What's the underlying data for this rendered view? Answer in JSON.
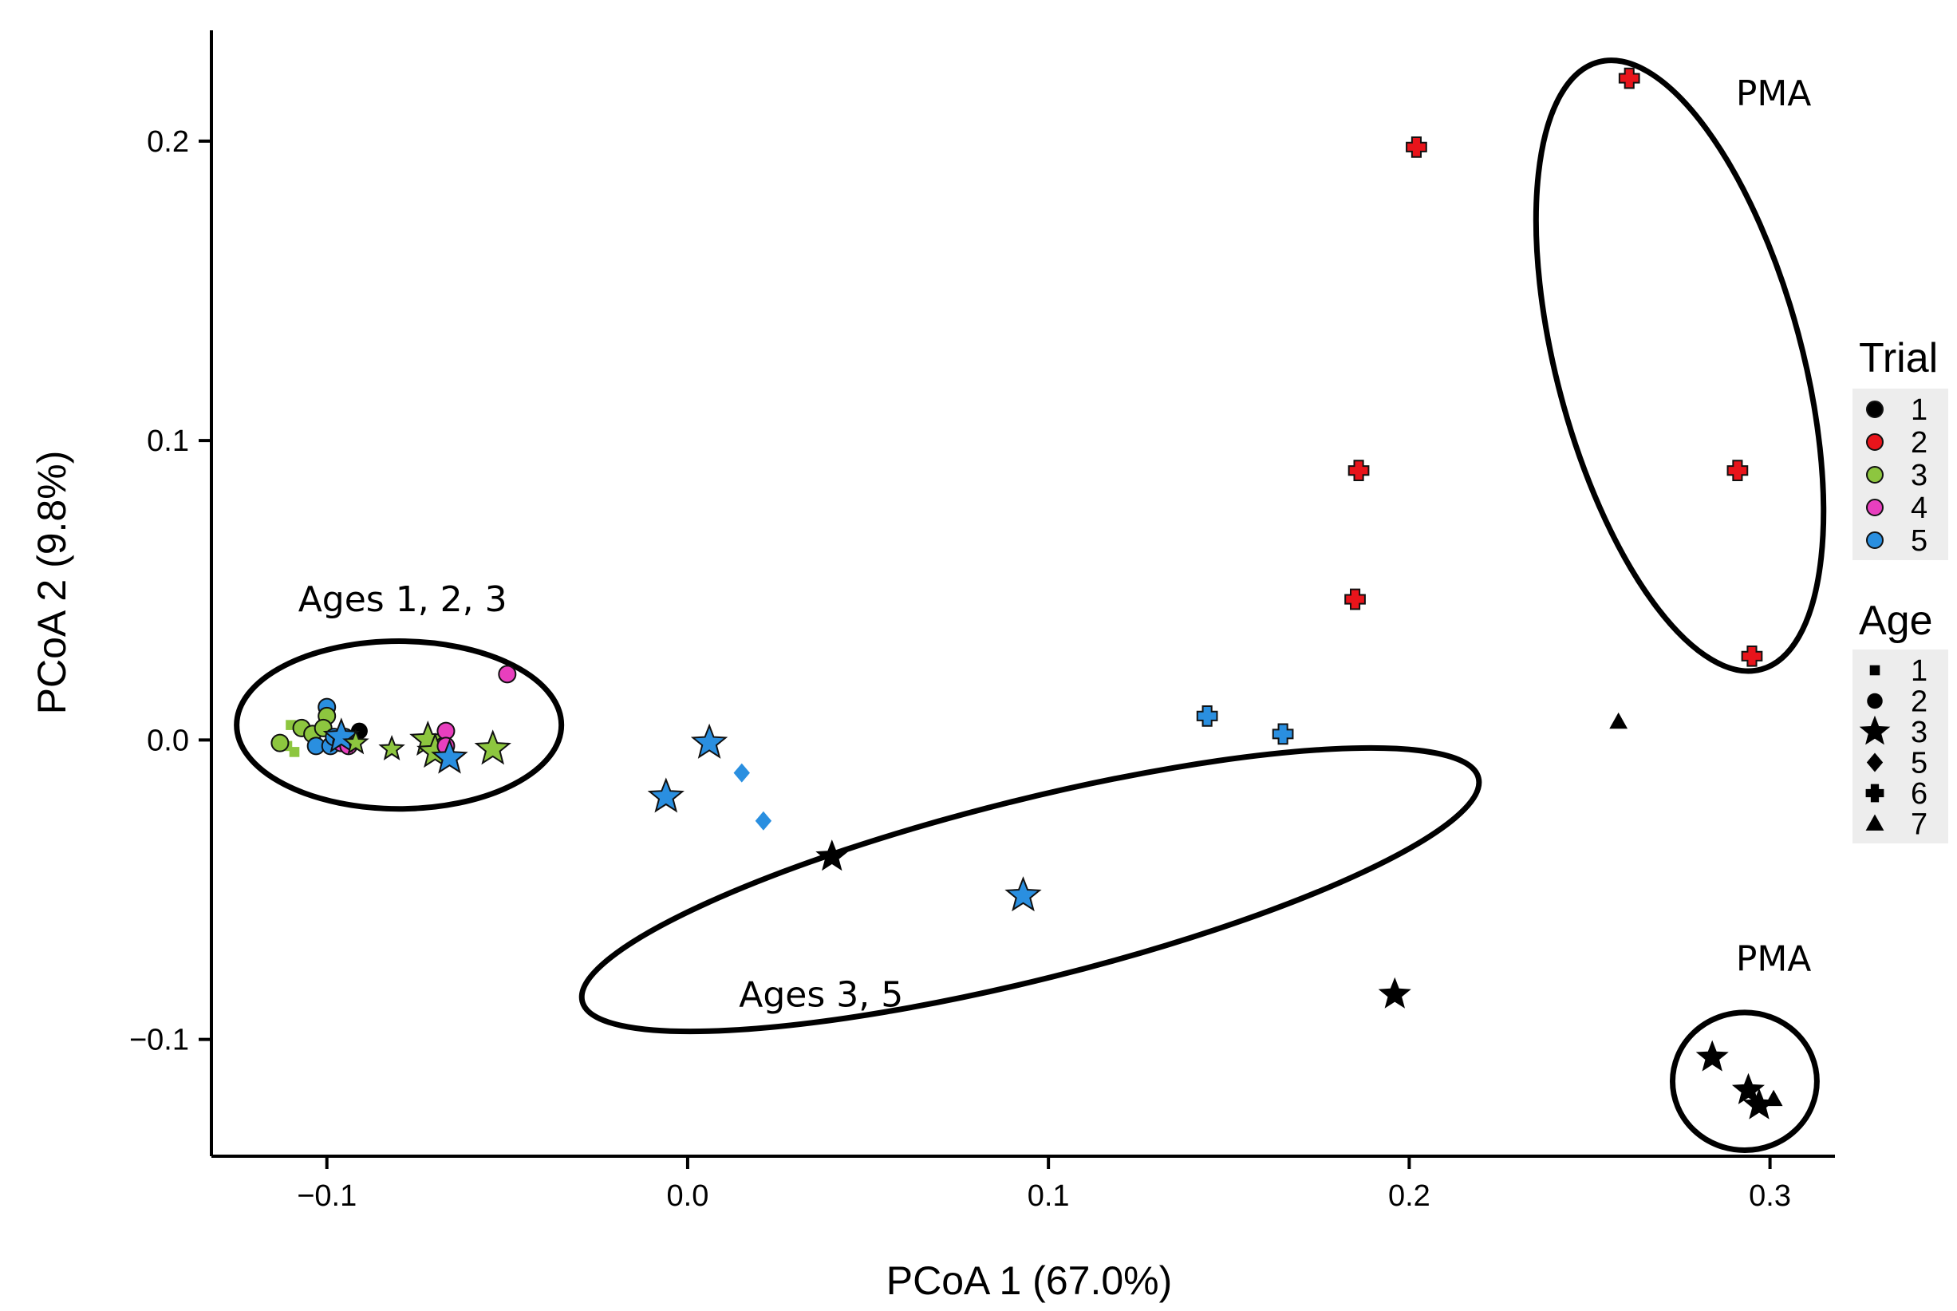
{
  "chart_data": {
    "type": "scatter",
    "xlabel": "PCoA 1 (67.0%)",
    "ylabel": "PCoA 2 (9.8%)",
    "xlim": [
      -0.132,
      0.318
    ],
    "ylim": [
      -0.139,
      0.237
    ],
    "xticks": [
      {
        "value": -0.1,
        "label": "−0.1"
      },
      {
        "value": 0.0,
        "label": "0.0"
      },
      {
        "value": 0.1,
        "label": "0.1"
      },
      {
        "value": 0.2,
        "label": "0.2"
      },
      {
        "value": 0.3,
        "label": "0.3"
      }
    ],
    "yticks": [
      {
        "value": -0.1,
        "label": "−0.1"
      },
      {
        "value": 0.0,
        "label": "0.0"
      },
      {
        "value": 0.1,
        "label": "0.1"
      },
      {
        "value": 0.2,
        "label": "0.2"
      }
    ],
    "grid": false,
    "legend": {
      "placement": "right",
      "trial": {
        "title": "Trial",
        "entries": [
          {
            "label": "1",
            "color": "#000000"
          },
          {
            "label": "2",
            "color": "#e8141b"
          },
          {
            "label": "3",
            "color": "#8dc63f"
          },
          {
            "label": "4",
            "color": "#e83fbe"
          },
          {
            "label": "5",
            "color": "#2a8fe0"
          }
        ]
      },
      "age": {
        "title": "Age",
        "entries": [
          {
            "label": "1",
            "shape": "square"
          },
          {
            "label": "2",
            "shape": "circle"
          },
          {
            "label": "3",
            "shape": "star"
          },
          {
            "label": "5",
            "shape": "diamond"
          },
          {
            "label": "6",
            "shape": "cross"
          },
          {
            "label": "7",
            "shape": "triangle"
          }
        ]
      }
    },
    "annotations": [
      {
        "text": "PMA",
        "x": 0.301,
        "y": 0.212
      },
      {
        "text": "Ages 1, 2, 3",
        "x": -0.079,
        "y": 0.043
      },
      {
        "text": "Ages 3, 5",
        "x": 0.037,
        "y": -0.089
      },
      {
        "text": "PMA",
        "x": 0.301,
        "y": -0.077
      }
    ],
    "ellipses": [
      {
        "cx": 0.275,
        "cy": 0.125,
        "rx": 0.034,
        "ry": 0.105,
        "angle_deg": -15
      },
      {
        "cx": -0.08,
        "cy": 0.005,
        "rx": 0.045,
        "ry": 0.028,
        "angle_deg": 0
      },
      {
        "cx": 0.095,
        "cy": -0.05,
        "rx": 0.128,
        "ry": 0.03,
        "angle_deg": -14
      },
      {
        "cx": 0.293,
        "cy": -0.114,
        "rx": 0.02,
        "ry": 0.023,
        "angle_deg": 0
      }
    ],
    "points": [
      {
        "x": 0.261,
        "y": 0.221,
        "trial": "2",
        "age": "6"
      },
      {
        "x": 0.202,
        "y": 0.198,
        "trial": "2",
        "age": "6"
      },
      {
        "x": 0.186,
        "y": 0.09,
        "trial": "2",
        "age": "6"
      },
      {
        "x": 0.291,
        "y": 0.09,
        "trial": "2",
        "age": "6"
      },
      {
        "x": 0.185,
        "y": 0.047,
        "trial": "2",
        "age": "6"
      },
      {
        "x": 0.295,
        "y": 0.028,
        "trial": "2",
        "age": "6"
      },
      {
        "x": 0.144,
        "y": 0.008,
        "trial": "5",
        "age": "6"
      },
      {
        "x": 0.165,
        "y": 0.002,
        "trial": "5",
        "age": "6"
      },
      {
        "x": 0.258,
        "y": 0.006,
        "trial": "1",
        "age": "7"
      },
      {
        "x": 0.006,
        "y": -0.001,
        "trial": "5",
        "age": "3"
      },
      {
        "x": -0.006,
        "y": -0.019,
        "trial": "5",
        "age": "3"
      },
      {
        "x": 0.015,
        "y": -0.011,
        "trial": "5",
        "age": "5"
      },
      {
        "x": 0.021,
        "y": -0.027,
        "trial": "5",
        "age": "5"
      },
      {
        "x": 0.04,
        "y": -0.039,
        "trial": "1",
        "age": "3"
      },
      {
        "x": 0.093,
        "y": -0.052,
        "trial": "5",
        "age": "3"
      },
      {
        "x": 0.196,
        "y": -0.085,
        "trial": "1",
        "age": "3"
      },
      {
        "x": 0.284,
        "y": -0.106,
        "trial": "1",
        "age": "3"
      },
      {
        "x": 0.294,
        "y": -0.117,
        "trial": "1",
        "age": "3"
      },
      {
        "x": 0.297,
        "y": -0.122,
        "trial": "1",
        "age": "3"
      },
      {
        "x": 0.301,
        "y": -0.12,
        "trial": "1",
        "age": "7"
      },
      {
        "x": -0.05,
        "y": 0.022,
        "trial": "4",
        "age": "2"
      },
      {
        "x": -0.1,
        "y": 0.011,
        "trial": "5",
        "age": "2"
      },
      {
        "x": -0.1,
        "y": 0.008,
        "trial": "3",
        "age": "2"
      },
      {
        "x": -0.11,
        "y": 0.005,
        "trial": "3",
        "age": "1"
      },
      {
        "x": -0.111,
        "y": -0.002,
        "trial": "3",
        "age": "1"
      },
      {
        "x": -0.109,
        "y": -0.004,
        "trial": "3",
        "age": "1"
      },
      {
        "x": -0.113,
        "y": -0.001,
        "trial": "3",
        "age": "2"
      },
      {
        "x": -0.107,
        "y": 0.004,
        "trial": "3",
        "age": "2"
      },
      {
        "x": -0.104,
        "y": 0.002,
        "trial": "3",
        "age": "2"
      },
      {
        "x": -0.101,
        "y": 0.004,
        "trial": "3",
        "age": "2"
      },
      {
        "x": -0.103,
        "y": -0.002,
        "trial": "5",
        "age": "2"
      },
      {
        "x": -0.099,
        "y": -0.002,
        "trial": "5",
        "age": "2"
      },
      {
        "x": -0.098,
        "y": 0.001,
        "trial": "5",
        "age": "2"
      },
      {
        "x": -0.096,
        "y": -0.001,
        "trial": "4",
        "age": "2"
      },
      {
        "x": -0.095,
        "y": 0.001,
        "trial": "5",
        "age": "2"
      },
      {
        "x": -0.094,
        "y": -0.002,
        "trial": "4",
        "age": "2"
      },
      {
        "x": -0.091,
        "y": 0.003,
        "trial": "1",
        "age": "2"
      },
      {
        "x": -0.096,
        "y": 0.001,
        "trial": "5",
        "age": "3"
      },
      {
        "x": -0.092,
        "y": -0.001,
        "trial": "3",
        "age": "3"
      },
      {
        "x": -0.082,
        "y": -0.003,
        "trial": "3",
        "age": "3"
      },
      {
        "x": -0.072,
        "y": 0.0,
        "trial": "3",
        "age": "3"
      },
      {
        "x": -0.07,
        "y": -0.004,
        "trial": "3",
        "age": "3"
      },
      {
        "x": -0.067,
        "y": 0.003,
        "trial": "4",
        "age": "2"
      },
      {
        "x": -0.067,
        "y": -0.002,
        "trial": "4",
        "age": "2"
      },
      {
        "x": -0.066,
        "y": -0.006,
        "trial": "5",
        "age": "3"
      },
      {
        "x": -0.054,
        "y": -0.003,
        "trial": "3",
        "age": "3"
      }
    ]
  }
}
